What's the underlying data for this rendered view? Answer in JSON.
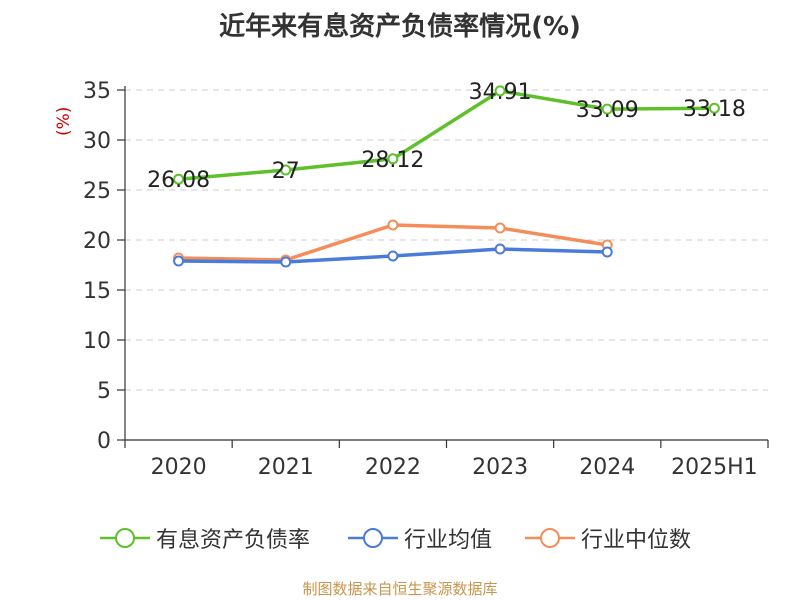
{
  "chart_data": {
    "type": "line",
    "title": "近年来有息资产负债率情况(%)",
    "ylabel": "(%)",
    "categories": [
      "2020",
      "2021",
      "2022",
      "2023",
      "2024",
      "2025H1"
    ],
    "ylim": [
      0,
      35
    ],
    "yticks": [
      0,
      5,
      10,
      15,
      20,
      25,
      30,
      35
    ],
    "grid": true,
    "legend_position": "bottom",
    "series": [
      {
        "name": "有息资产负债率",
        "color": "#5ec12c",
        "labeled": true,
        "values": [
          26.08,
          27,
          28.12,
          34.91,
          33.09,
          33.18
        ],
        "labels": [
          "26.08",
          "27",
          "28.12",
          "34.91",
          "33.09",
          "33.18"
        ]
      },
      {
        "name": "行业均值",
        "color": "#4a7bd8",
        "labeled": false,
        "values": [
          17.9,
          17.8,
          18.4,
          19.1,
          18.8,
          null
        ]
      },
      {
        "name": "行业中位数",
        "color": "#f58d5a",
        "labeled": false,
        "values": [
          18.2,
          18.0,
          21.5,
          21.2,
          19.5,
          null
        ]
      }
    ]
  },
  "colors": {
    "ylabel": "#cc0000",
    "footer": "#c9954c"
  },
  "footer": "制图数据来自恒生聚源数据库"
}
